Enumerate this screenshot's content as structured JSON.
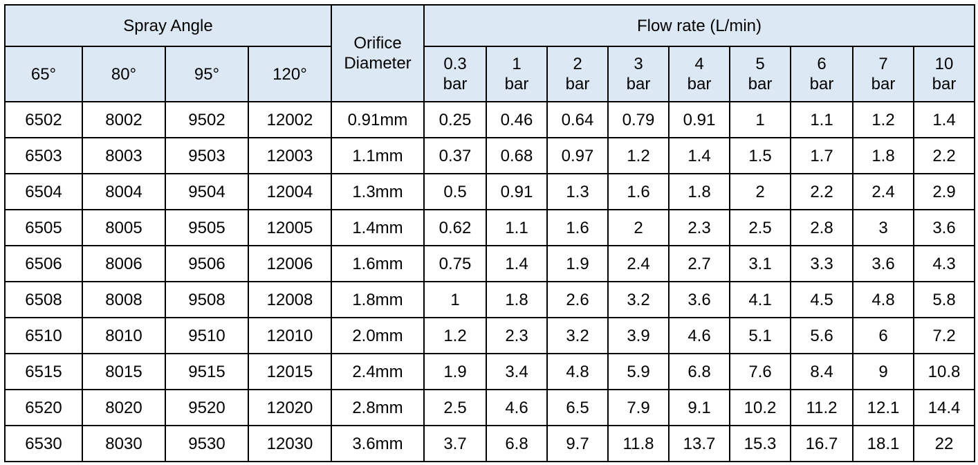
{
  "table": {
    "header": {
      "spray_angle": "Spray Angle",
      "orifice_diameter": "Orifice\nDiameter",
      "flow_rate": "Flow rate (L/min)",
      "angles": [
        "65°",
        "80°",
        "95°",
        "120°"
      ],
      "pressures": [
        "0.3\nbar",
        "1\nbar",
        "2\nbar",
        "3\nbar",
        "4\nbar",
        "5\nbar",
        "6\nbar",
        "7\nbar",
        "10\nbar"
      ]
    },
    "rows": [
      {
        "codes": [
          "6502",
          "8002",
          "9502",
          "12002"
        ],
        "orifice": "0.91mm",
        "flow": [
          0.25,
          0.46,
          0.64,
          0.79,
          0.91,
          1,
          1.1,
          1.2,
          1.4
        ]
      },
      {
        "codes": [
          "6503",
          "8003",
          "9503",
          "12003"
        ],
        "orifice": "1.1mm",
        "flow": [
          0.37,
          0.68,
          0.97,
          1.2,
          1.4,
          1.5,
          1.7,
          1.8,
          2.2
        ]
      },
      {
        "codes": [
          "6504",
          "8004",
          "9504",
          "12004"
        ],
        "orifice": "1.3mm",
        "flow": [
          0.5,
          0.91,
          1.3,
          1.6,
          1.8,
          2,
          2.2,
          2.4,
          2.9
        ]
      },
      {
        "codes": [
          "6505",
          "8005",
          "9505",
          "12005"
        ],
        "orifice": "1.4mm",
        "flow": [
          0.62,
          1.1,
          1.6,
          2,
          2.3,
          2.5,
          2.8,
          3,
          3.6
        ]
      },
      {
        "codes": [
          "6506",
          "8006",
          "9506",
          "12006"
        ],
        "orifice": "1.6mm",
        "flow": [
          0.75,
          1.4,
          1.9,
          2.4,
          2.7,
          3.1,
          3.3,
          3.6,
          4.3
        ]
      },
      {
        "codes": [
          "6508",
          "8008",
          "9508",
          "12008"
        ],
        "orifice": "1.8mm",
        "flow": [
          1,
          1.8,
          2.6,
          3.2,
          3.6,
          4.1,
          4.5,
          4.8,
          5.8
        ]
      },
      {
        "codes": [
          "6510",
          "8010",
          "9510",
          "12010"
        ],
        "orifice": "2.0mm",
        "flow": [
          1.2,
          2.3,
          3.2,
          3.9,
          4.6,
          5.1,
          5.6,
          6,
          7.2
        ]
      },
      {
        "codes": [
          "6515",
          "8015",
          "9515",
          "12015"
        ],
        "orifice": "2.4mm",
        "flow": [
          1.9,
          3.4,
          4.8,
          5.9,
          6.8,
          7.6,
          8.4,
          9,
          10.8
        ]
      },
      {
        "codes": [
          "6520",
          "8020",
          "9520",
          "12020"
        ],
        "orifice": "2.8mm",
        "flow": [
          2.5,
          4.6,
          6.5,
          7.9,
          9.1,
          10.2,
          11.2,
          12.1,
          14.4
        ]
      },
      {
        "codes": [
          "6530",
          "8030",
          "9530",
          "12030"
        ],
        "orifice": "3.6mm",
        "flow": [
          3.7,
          6.8,
          9.7,
          11.8,
          13.7,
          15.3,
          16.7,
          18.1,
          22
        ]
      }
    ]
  }
}
